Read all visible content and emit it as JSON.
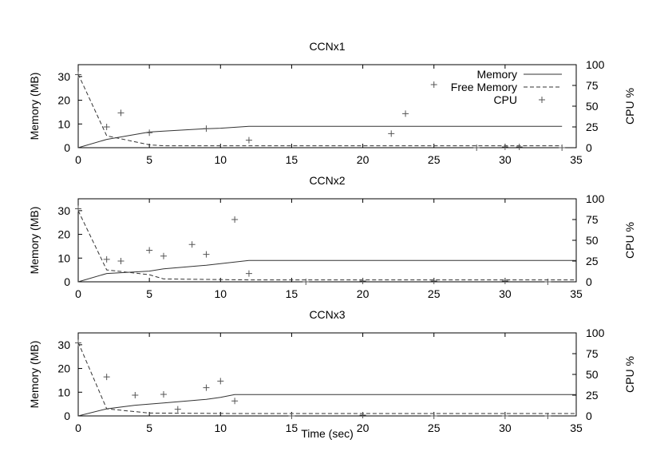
{
  "figure": {
    "xlabel": "Time (sec)"
  },
  "chart_data": [
    {
      "type": "line",
      "title": "CCNx1",
      "xlabel": "",
      "ylabel": "Memory (MB)",
      "y2label": "CPU %",
      "xlim": [
        0,
        35
      ],
      "ylim": [
        0,
        35
      ],
      "y2lim": [
        0,
        100
      ],
      "xticks": [
        0,
        5,
        10,
        15,
        20,
        25,
        30,
        35
      ],
      "yticks": [
        0,
        10,
        20,
        30
      ],
      "y2ticks": [
        0,
        25,
        50,
        75,
        100
      ],
      "legend": {
        "position": "top-right",
        "entries": [
          "Memory",
          "Free Memory",
          "CPU"
        ]
      },
      "grid": false,
      "series": [
        {
          "name": "Memory",
          "axis": "left",
          "style": "solid",
          "x": [
            0,
            2,
            5,
            6,
            9,
            10,
            12,
            34
          ],
          "y": [
            0,
            3.5,
            6.6,
            7,
            8,
            8.2,
            9,
            9
          ]
        },
        {
          "name": "Free Memory",
          "axis": "left",
          "style": "dashed",
          "x": [
            0,
            2,
            5,
            6,
            12,
            34
          ],
          "y": [
            31,
            5,
            1.2,
            0.8,
            0.8,
            0.8
          ]
        },
        {
          "name": "CPU",
          "axis": "right",
          "style": "points",
          "x": [
            0,
            2,
            3,
            5,
            9,
            12,
            22,
            23,
            25,
            28,
            30,
            31,
            34
          ],
          "y": [
            88,
            25,
            42,
            18,
            23,
            9,
            17,
            41,
            76,
            0,
            1,
            1,
            0
          ]
        }
      ]
    },
    {
      "type": "line",
      "title": "CCNx2",
      "xlabel": "",
      "ylabel": "Memory (MB)",
      "y2label": "CPU %",
      "xlim": [
        0,
        35
      ],
      "ylim": [
        0,
        35
      ],
      "y2lim": [
        0,
        100
      ],
      "xticks": [
        0,
        5,
        10,
        15,
        20,
        25,
        30,
        35
      ],
      "yticks": [
        0,
        10,
        20,
        30
      ],
      "y2ticks": [
        0,
        25,
        50,
        75,
        100
      ],
      "grid": false,
      "series": [
        {
          "name": "Memory",
          "axis": "left",
          "style": "solid",
          "x": [
            0,
            2,
            5,
            6,
            9,
            12,
            35
          ],
          "y": [
            0,
            3.5,
            4.5,
            5.5,
            7,
            9,
            9
          ]
        },
        {
          "name": "Free Memory",
          "axis": "left",
          "style": "dashed",
          "x": [
            0,
            2,
            5,
            6,
            12,
            35
          ],
          "y": [
            30,
            5,
            3,
            1.2,
            0.8,
            0.8
          ]
        },
        {
          "name": "CPU",
          "axis": "right",
          "style": "points",
          "x": [
            0,
            2,
            3,
            5,
            6,
            8,
            9,
            11,
            12,
            16,
            20,
            25,
            30,
            33
          ],
          "y": [
            88,
            27,
            25,
            38,
            31,
            45,
            33,
            75,
            10,
            0,
            1,
            1,
            1,
            0
          ]
        }
      ]
    },
    {
      "type": "line",
      "title": "CCNx3",
      "xlabel": "Time (sec)",
      "ylabel": "Memory (MB)",
      "y2label": "CPU %",
      "xlim": [
        0,
        35
      ],
      "ylim": [
        0,
        35
      ],
      "y2lim": [
        0,
        100
      ],
      "xticks": [
        0,
        5,
        10,
        15,
        20,
        25,
        30,
        35
      ],
      "yticks": [
        0,
        10,
        20,
        30
      ],
      "y2ticks": [
        0,
        25,
        50,
        75,
        100
      ],
      "grid": false,
      "series": [
        {
          "name": "Memory",
          "axis": "left",
          "style": "solid",
          "x": [
            0,
            2,
            4,
            6,
            8,
            9,
            10,
            11,
            35
          ],
          "y": [
            0,
            3,
            4.5,
            5.5,
            6.5,
            7,
            7.8,
            9,
            9
          ]
        },
        {
          "name": "Free Memory",
          "axis": "left",
          "style": "dashed",
          "x": [
            0,
            2,
            5,
            11,
            35
          ],
          "y": [
            31,
            3,
            1.2,
            1,
            1
          ]
        },
        {
          "name": "CPU",
          "axis": "right",
          "style": "points",
          "x": [
            0,
            2,
            4,
            6,
            7,
            9,
            10,
            11,
            15,
            20,
            25,
            30,
            33
          ],
          "y": [
            88,
            47,
            25,
            26,
            8,
            34,
            42,
            18,
            0,
            1,
            0,
            0,
            0
          ]
        }
      ]
    }
  ]
}
